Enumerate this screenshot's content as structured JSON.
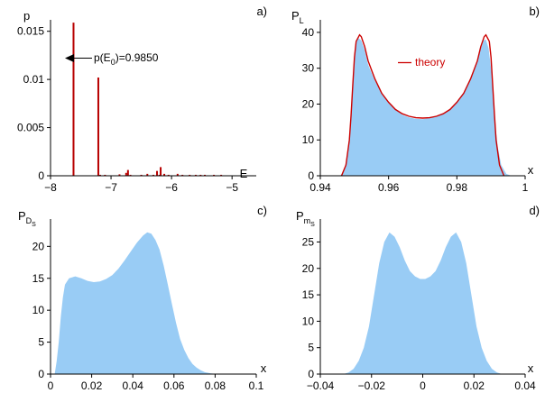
{
  "chart_data": [
    {
      "panel_label": "a)",
      "type": "bar",
      "ylabel": "p",
      "xlabel": "E",
      "xlim": [
        -8,
        -4.6
      ],
      "ylim": [
        0,
        0.016
      ],
      "xticks": [
        -8,
        -7,
        -6,
        -5
      ],
      "xtick_labels": [
        "−8",
        "−7",
        "−6",
        "−5"
      ],
      "yticks": [
        0,
        0.005,
        0.01,
        0.015
      ],
      "ytick_labels": [
        "0",
        "0.005",
        "0.01",
        "0.015"
      ],
      "annotation": {
        "base": "p(E",
        "sub": "0",
        "rest": ")=0.9850",
        "x": -7.62,
        "y": 0.0132
      },
      "color": "#b80000",
      "spikes": [
        {
          "x": -7.62,
          "y": 0.0159
        },
        {
          "x": -7.21,
          "y": 0.0102
        },
        {
          "x": -7.18,
          "y": 0.0001
        },
        {
          "x": -7.1,
          "y": 0.0001
        },
        {
          "x": -6.86,
          "y": 0.00015
        },
        {
          "x": -6.75,
          "y": 0.0003
        },
        {
          "x": -6.72,
          "y": 0.0006
        },
        {
          "x": -6.68,
          "y": 0.0001
        },
        {
          "x": -6.5,
          "y": 0.0001
        },
        {
          "x": -6.4,
          "y": 0.0002
        },
        {
          "x": -6.3,
          "y": 0.0001
        },
        {
          "x": -6.24,
          "y": 0.0005
        },
        {
          "x": -6.2,
          "y": 0.0001
        },
        {
          "x": -6.18,
          "y": 0.0009
        },
        {
          "x": -6.12,
          "y": 0.0002
        },
        {
          "x": -6.05,
          "y": 0.0001
        },
        {
          "x": -5.9,
          "y": 0.0002
        },
        {
          "x": -5.82,
          "y": 0.0001
        },
        {
          "x": -5.7,
          "y": 0.0001
        },
        {
          "x": -5.6,
          "y": 0.0001
        },
        {
          "x": -5.52,
          "y": 0.0001
        },
        {
          "x": -5.45,
          "y": 0.0001
        },
        {
          "x": -5.3,
          "y": 0.0001
        },
        {
          "x": -5.18,
          "y": 0.0001
        }
      ]
    },
    {
      "panel_label": "b)",
      "type": "area",
      "ylabel": "P",
      "ylabel_sub": "L",
      "xlabel": "x",
      "xlim": [
        0.94,
        1.0
      ],
      "ylim": [
        0,
        43
      ],
      "xticks": [
        0.94,
        0.96,
        0.98,
        1.0
      ],
      "xtick_labels": [
        "0.94",
        "0.96",
        "0.98",
        "1"
      ],
      "yticks": [
        0,
        10,
        20,
        30,
        40
      ],
      "ytick_labels": [
        "0",
        "10",
        "20",
        "30",
        "40"
      ],
      "histogram_color": "#99ccf5",
      "series": [
        {
          "name": "theory",
          "color": "#cc0000",
          "points": [
            [
              0.9462,
              0
            ],
            [
              0.9475,
              3
            ],
            [
              0.9485,
              10
            ],
            [
              0.949,
              17
            ],
            [
              0.9495,
              25
            ],
            [
              0.95,
              33
            ],
            [
              0.9505,
              37.5
            ],
            [
              0.9515,
              39.3
            ],
            [
              0.952,
              38.8
            ],
            [
              0.953,
              36
            ],
            [
              0.954,
              32
            ],
            [
              0.956,
              27
            ],
            [
              0.958,
              23
            ],
            [
              0.96,
              20.5
            ],
            [
              0.962,
              18.5
            ],
            [
              0.964,
              17.3
            ],
            [
              0.966,
              16.6
            ],
            [
              0.968,
              16.2
            ],
            [
              0.97,
              16.1
            ],
            [
              0.972,
              16.2
            ],
            [
              0.974,
              16.6
            ],
            [
              0.976,
              17.3
            ],
            [
              0.978,
              18.5
            ],
            [
              0.98,
              20.5
            ],
            [
              0.982,
              23
            ],
            [
              0.984,
              27
            ],
            [
              0.986,
              32
            ],
            [
              0.987,
              36
            ],
            [
              0.988,
              38.8
            ],
            [
              0.9885,
              39.3
            ],
            [
              0.9895,
              37.5
            ],
            [
              0.99,
              33
            ],
            [
              0.9905,
              25
            ],
            [
              0.991,
              17
            ],
            [
              0.9915,
              10
            ],
            [
              0.9925,
              3
            ],
            [
              0.9938,
              0
            ]
          ]
        }
      ],
      "histogram": [
        [
          0.9458,
          0
        ],
        [
          0.9468,
          1
        ],
        [
          0.9478,
          5
        ],
        [
          0.9488,
          14
        ],
        [
          0.9493,
          22
        ],
        [
          0.9498,
          31
        ],
        [
          0.9503,
          36
        ],
        [
          0.951,
          38.5
        ],
        [
          0.952,
          37.8
        ],
        [
          0.953,
          35
        ],
        [
          0.954,
          31
        ],
        [
          0.956,
          26.5
        ],
        [
          0.958,
          23
        ],
        [
          0.96,
          20.5
        ],
        [
          0.962,
          18.5
        ],
        [
          0.964,
          17
        ],
        [
          0.966,
          16.3
        ],
        [
          0.968,
          15.9
        ],
        [
          0.97,
          15.8
        ],
        [
          0.972,
          16.1
        ],
        [
          0.974,
          16.6
        ],
        [
          0.976,
          17.3
        ],
        [
          0.978,
          18.6
        ],
        [
          0.98,
          20.7
        ],
        [
          0.982,
          23.3
        ],
        [
          0.984,
          27.3
        ],
        [
          0.986,
          32
        ],
        [
          0.987,
          35.5
        ],
        [
          0.9878,
          37.8
        ],
        [
          0.9885,
          38
        ],
        [
          0.9893,
          35.5
        ],
        [
          0.99,
          30
        ],
        [
          0.9905,
          24
        ],
        [
          0.991,
          16
        ],
        [
          0.992,
          8
        ],
        [
          0.993,
          3
        ],
        [
          0.9945,
          0.5
        ],
        [
          0.996,
          0
        ]
      ]
    },
    {
      "panel_label": "c)",
      "type": "area",
      "ylabel": "P",
      "ylabel_sub": "D",
      "ylabel_subsub": "S",
      "xlabel": "x",
      "xlim": [
        0,
        0.1
      ],
      "ylim": [
        0,
        24
      ],
      "xticks": [
        0,
        0.02,
        0.04,
        0.06,
        0.08,
        0.1
      ],
      "xtick_labels": [
        "0",
        "0.02",
        "0.04",
        "0.06",
        "0.08",
        "0.1"
      ],
      "yticks": [
        0,
        5,
        10,
        15,
        20
      ],
      "ytick_labels": [
        "0",
        "5",
        "10",
        "15",
        "20"
      ],
      "histogram_color": "#99ccf5",
      "histogram": [
        [
          0.002,
          0
        ],
        [
          0.003,
          2
        ],
        [
          0.004,
          5
        ],
        [
          0.005,
          9
        ],
        [
          0.006,
          12
        ],
        [
          0.007,
          14
        ],
        [
          0.009,
          15
        ],
        [
          0.012,
          15.3
        ],
        [
          0.015,
          15
        ],
        [
          0.018,
          14.6
        ],
        [
          0.021,
          14.4
        ],
        [
          0.024,
          14.5
        ],
        [
          0.027,
          14.9
        ],
        [
          0.03,
          15.5
        ],
        [
          0.033,
          16.5
        ],
        [
          0.036,
          17.8
        ],
        [
          0.039,
          19.2
        ],
        [
          0.042,
          20.6
        ],
        [
          0.045,
          21.7
        ],
        [
          0.047,
          22.2
        ],
        [
          0.049,
          22
        ],
        [
          0.051,
          21
        ],
        [
          0.053,
          19.5
        ],
        [
          0.055,
          17
        ],
        [
          0.057,
          14
        ],
        [
          0.059,
          11
        ],
        [
          0.061,
          8
        ],
        [
          0.063,
          5.5
        ],
        [
          0.065,
          3.8
        ],
        [
          0.067,
          2.5
        ],
        [
          0.069,
          1.6
        ],
        [
          0.071,
          1
        ],
        [
          0.073,
          0.6
        ],
        [
          0.075,
          0.3
        ],
        [
          0.078,
          0.1
        ],
        [
          0.081,
          0
        ]
      ]
    },
    {
      "panel_label": "d)",
      "type": "area",
      "ylabel": "P",
      "ylabel_sub": "m",
      "ylabel_subsub": "S",
      "xlabel": "x",
      "xlim": [
        -0.04,
        0.04
      ],
      "ylim": [
        0,
        29
      ],
      "xticks": [
        -0.04,
        -0.02,
        0,
        0.02,
        0.04
      ],
      "xtick_labels": [
        "−0.04",
        "−0.02",
        "0",
        "0.02",
        "0.04"
      ],
      "yticks": [
        0,
        5,
        10,
        15,
        20,
        25
      ],
      "ytick_labels": [
        "0",
        "5",
        "10",
        "15",
        "20",
        "25"
      ],
      "histogram_color": "#99ccf5",
      "histogram": [
        [
          -0.031,
          0
        ],
        [
          -0.029,
          0.3
        ],
        [
          -0.027,
          1
        ],
        [
          -0.025,
          2.5
        ],
        [
          -0.023,
          5
        ],
        [
          -0.021,
          9
        ],
        [
          -0.019,
          15
        ],
        [
          -0.017,
          21
        ],
        [
          -0.015,
          25
        ],
        [
          -0.013,
          26.8
        ],
        [
          -0.011,
          26
        ],
        [
          -0.009,
          24
        ],
        [
          -0.007,
          21.5
        ],
        [
          -0.005,
          19.5
        ],
        [
          -0.003,
          18.5
        ],
        [
          -0.001,
          18
        ],
        [
          0.001,
          18
        ],
        [
          0.003,
          18.5
        ],
        [
          0.005,
          19.5
        ],
        [
          0.007,
          21.5
        ],
        [
          0.009,
          24
        ],
        [
          0.011,
          26
        ],
        [
          0.013,
          26.8
        ],
        [
          0.015,
          25
        ],
        [
          0.017,
          21
        ],
        [
          0.019,
          15
        ],
        [
          0.021,
          9
        ],
        [
          0.023,
          5
        ],
        [
          0.025,
          2.5
        ],
        [
          0.027,
          1
        ],
        [
          0.029,
          0.3
        ],
        [
          0.031,
          0
        ]
      ]
    }
  ]
}
